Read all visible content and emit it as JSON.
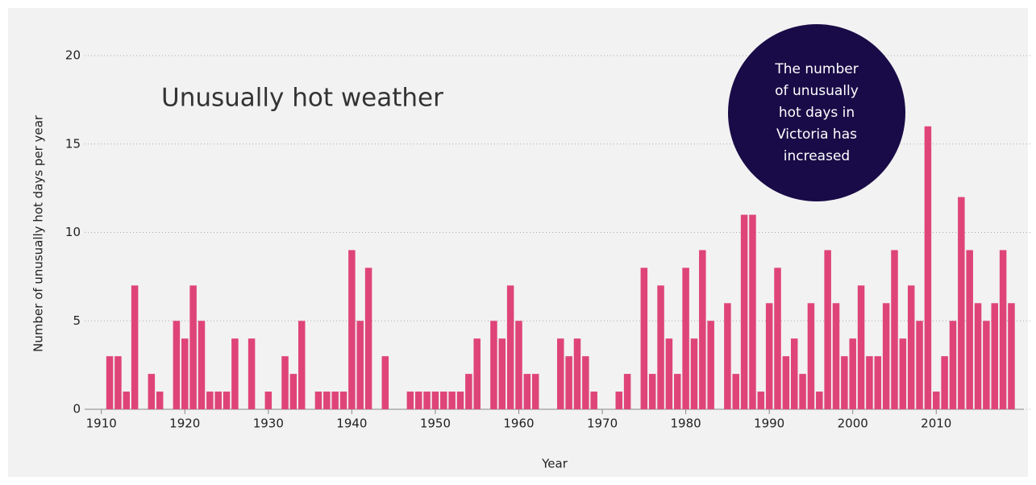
{
  "chart_data": {
    "type": "bar",
    "title": "Unusually hot weather",
    "x_label": "Year",
    "y_label": "Number of unusually hot days per year",
    "annotation": [
      "The number",
      "of unusually",
      "hot days in",
      "Victoria has",
      "increased"
    ],
    "color": "#df4479",
    "annotation_color": "#190b47",
    "grid": true,
    "x": [
      1911,
      1912,
      1913,
      1914,
      1915,
      1916,
      1917,
      1918,
      1919,
      1920,
      1921,
      1922,
      1923,
      1924,
      1925,
      1926,
      1927,
      1928,
      1929,
      1930,
      1931,
      1932,
      1933,
      1934,
      1935,
      1936,
      1937,
      1938,
      1939,
      1940,
      1941,
      1942,
      1943,
      1944,
      1945,
      1946,
      1947,
      1948,
      1949,
      1950,
      1951,
      1952,
      1953,
      1954,
      1955,
      1956,
      1957,
      1958,
      1959,
      1960,
      1961,
      1962,
      1963,
      1964,
      1965,
      1966,
      1967,
      1968,
      1969,
      1970,
      1971,
      1972,
      1973,
      1974,
      1975,
      1976,
      1977,
      1978,
      1979,
      1980,
      1981,
      1982,
      1983,
      1984,
      1985,
      1986,
      1987,
      1988,
      1989,
      1990,
      1991,
      1992,
      1993,
      1994,
      1995,
      1996,
      1997,
      1998,
      1999,
      2000,
      2001,
      2002,
      2003,
      2004,
      2005,
      2006,
      2007,
      2008,
      2009,
      2010,
      2011,
      2012,
      2013,
      2014,
      2015,
      2016,
      2017,
      2018,
      2019
    ],
    "values": [
      3,
      3,
      1,
      7,
      0,
      2,
      1,
      0,
      5,
      4,
      7,
      5,
      1,
      1,
      1,
      4,
      0,
      4,
      0,
      1,
      0,
      3,
      2,
      5,
      0,
      1,
      1,
      1,
      1,
      9,
      5,
      8,
      0,
      3,
      0,
      0,
      1,
      1,
      1,
      1,
      1,
      1,
      1,
      2,
      4,
      0,
      5,
      4,
      7,
      5,
      2,
      2,
      0,
      0,
      4,
      3,
      4,
      3,
      1,
      0,
      0,
      1,
      2,
      0,
      8,
      2,
      7,
      4,
      2,
      8,
      4,
      9,
      5,
      0,
      6,
      2,
      11,
      11,
      1,
      6,
      8,
      3,
      4,
      2,
      6,
      1,
      9,
      6,
      3,
      4,
      7,
      3,
      3,
      6,
      9,
      4,
      7,
      5,
      16,
      1,
      3,
      5,
      12,
      9,
      6,
      5,
      6,
      9,
      6
    ],
    "xlim": [
      1908,
      2020.5
    ],
    "xticks": [
      1910,
      1920,
      1930,
      1940,
      1950,
      1960,
      1970,
      1980,
      1990,
      2000,
      2010
    ],
    "ylim": [
      0,
      20
    ],
    "yticks": [
      0,
      5,
      10,
      15,
      20
    ]
  }
}
